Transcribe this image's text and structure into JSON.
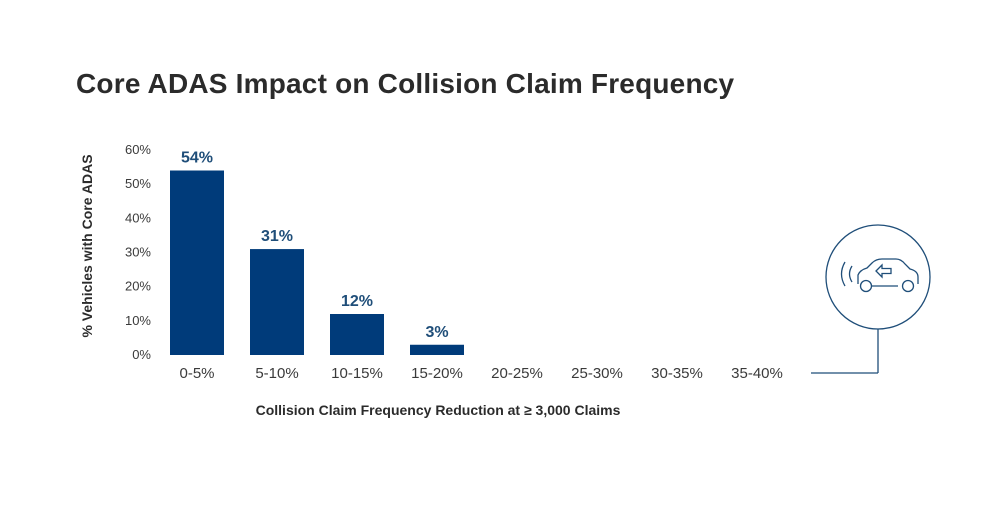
{
  "colors": {
    "bar": "#003b7a",
    "data_label": "#1f4e79",
    "icon_stroke": "#1f4e79"
  },
  "icon": {
    "name": "car-collision-sensor-icon"
  },
  "chart_data": {
    "type": "bar",
    "title": "Core ADAS Impact on Collision Claim Frequency",
    "xlabel": "Collision Claim Frequency Reduction at ≥ 3,000 Claims",
    "ylabel": "% Vehicles with Core ADAS",
    "categories": [
      "0-5%",
      "5-10%",
      "10-15%",
      "15-20%",
      "20-25%",
      "25-30%",
      "30-35%",
      "35-40%"
    ],
    "values": [
      54,
      31,
      12,
      3,
      null,
      null,
      null,
      null
    ],
    "data_labels": [
      "54%",
      "31%",
      "12%",
      "3%",
      "",
      "",
      "",
      ""
    ],
    "ylim": [
      0,
      60
    ],
    "yticks": [
      "0%",
      "10%",
      "20%",
      "30%",
      "40%",
      "50%",
      "60%"
    ],
    "grid": false,
    "legend": "none"
  }
}
